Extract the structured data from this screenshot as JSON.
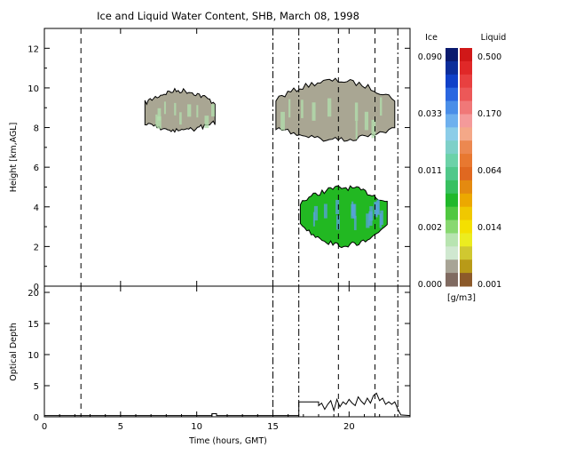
{
  "chart_data": [
    {
      "type": "heatmap",
      "title": "Ice and Liquid Water Content, SHB, March 08, 1998",
      "ylabel": "Height [km,AGL]",
      "xlim": [
        0,
        24
      ],
      "ylim": [
        0,
        13
      ],
      "yticks": [
        "0",
        "2",
        "4",
        "6",
        "8",
        "10",
        "12"
      ],
      "vertical_lines": [
        {
          "x": 2.4,
          "style": "dashed"
        },
        {
          "x": 15.0,
          "style": "dash-dot"
        },
        {
          "x": 16.7,
          "style": "dash-dot"
        },
        {
          "x": 19.3,
          "style": "dashed"
        },
        {
          "x": 21.7,
          "style": "dashed"
        },
        {
          "x": 23.2,
          "style": "dash-dot"
        }
      ],
      "cloud_regions": [
        {
          "name": "",
          "phase": "ice",
          "x_range": [
            6.6,
            11.2
          ],
          "height_range": [
            7.5,
            10.0
          ],
          "color": "#a9a693",
          "highlight": "#b3e0ad"
        },
        {
          "name": "",
          "phase": "ice",
          "x_range": [
            15.2,
            23.0
          ],
          "height_range": [
            6.8,
            10.5
          ],
          "color": "#a9a693",
          "highlight": "#b3e0ad"
        },
        {
          "name": "",
          "phase": "liquid",
          "x_range": [
            16.8,
            22.5
          ],
          "height_range": [
            2.2,
            5.1
          ],
          "color": "#22b822",
          "highlight": "#5aa0e0"
        }
      ],
      "colorbar": {
        "left_label": "Ice",
        "right_label": "Liquid",
        "unit": "[g/m3]",
        "ice_ticks": [
          "0.090",
          "0.033",
          "0.011",
          "0.002",
          "0.000"
        ],
        "liquid_ticks": [
          "0.500",
          "0.170",
          "0.064",
          "0.014",
          "0.001"
        ],
        "ice_colors": [
          "#0a1a6e",
          "#0c2d9a",
          "#1040c8",
          "#2a66e0",
          "#4a8ee8",
          "#6eb0ee",
          "#8ccde8",
          "#7ed0c8",
          "#6cd2a8",
          "#50c88a",
          "#38c060",
          "#20b82a",
          "#50c840",
          "#88d870",
          "#b8e4b0",
          "#d0e8d0",
          "#a8a496",
          "#806a60"
        ],
        "liquid_colors": [
          "#d01818",
          "#e02828",
          "#e84040",
          "#ec5858",
          "#f07878",
          "#f49a9a",
          "#f4a888",
          "#ec8850",
          "#e87830",
          "#e06820",
          "#e48a10",
          "#eca800",
          "#f0c800",
          "#f4e000",
          "#ecec20",
          "#d0c830",
          "#b89a18",
          "#8c5a2a"
        ]
      }
    },
    {
      "type": "line",
      "xlabel": "Time (hours, GMT)",
      "ylabel": "Optical Depth",
      "xlim": [
        0,
        24
      ],
      "ylim": [
        0,
        21
      ],
      "xticks": [
        "0",
        "5",
        "10",
        "15",
        "20"
      ],
      "yticks": [
        "0",
        "5",
        "10",
        "15",
        "20"
      ],
      "series": [
        {
          "x": [
            0,
            11.0,
            11.0,
            11.3,
            11.3,
            16.7,
            16.7,
            18.0,
            18.0,
            18.2,
            18.4,
            18.6,
            18.8,
            19.0,
            19.2,
            19.4,
            19.6,
            19.8,
            20.0,
            20.2,
            20.4,
            20.6,
            20.8,
            21.0,
            21.2,
            21.4,
            21.6,
            21.8,
            22.0,
            22.2,
            22.4,
            22.6,
            22.8,
            23.0,
            23.2,
            23.4,
            24
          ],
          "y": [
            0.2,
            0.2,
            0.5,
            0.5,
            0.2,
            0.2,
            2.4,
            2.4,
            1.8,
            2.2,
            1.2,
            2.0,
            2.6,
            1.0,
            2.8,
            1.6,
            2.4,
            2.0,
            2.8,
            2.2,
            1.8,
            3.2,
            2.5,
            2.0,
            3.0,
            2.2,
            3.4,
            3.8,
            2.6,
            3.0,
            2.0,
            2.4,
            2.0,
            2.4,
            1.2,
            0.3,
            0.2
          ]
        }
      ]
    }
  ]
}
